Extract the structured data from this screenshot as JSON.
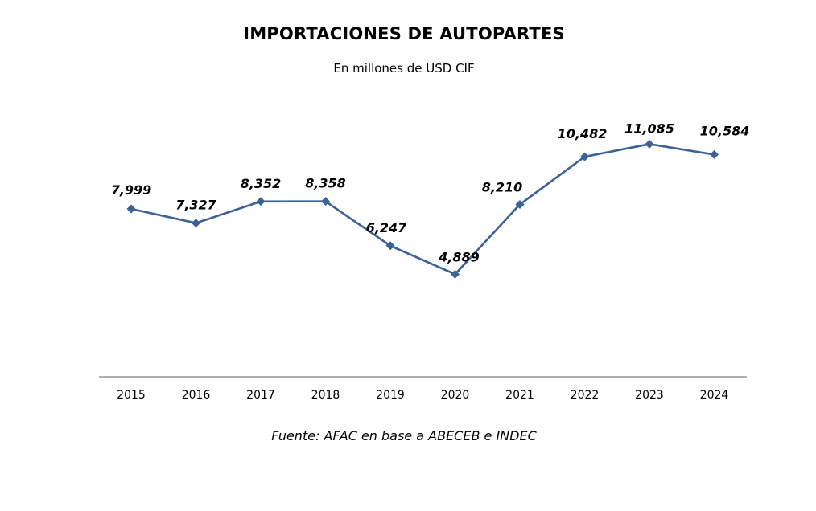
{
  "chart_data": {
    "type": "line",
    "title": "IMPORTACIONES DE AUTOPARTES",
    "subtitle": "En millones de USD CIF",
    "source": "Fuente: AFAC en base a ABECEB e INDEC",
    "xlabel": "",
    "ylabel": "",
    "categories": [
      "2015",
      "2016",
      "2017",
      "2018",
      "2019",
      "2020",
      "2021",
      "2022",
      "2023",
      "2024"
    ],
    "series": [
      {
        "values": [
          7999,
          7327,
          8352,
          8358,
          6247,
          4889,
          8210,
          10482,
          11085,
          10584
        ],
        "labels": [
          "7,999",
          "7,327",
          "8,352",
          "8,358",
          "6,247",
          "4,889",
          "8,210",
          "10,482",
          "11,085",
          "10,584"
        ],
        "color": "#3B6196",
        "marker": "diamond"
      }
    ],
    "grid": false,
    "legend": "none",
    "axis_color": "#808080"
  }
}
